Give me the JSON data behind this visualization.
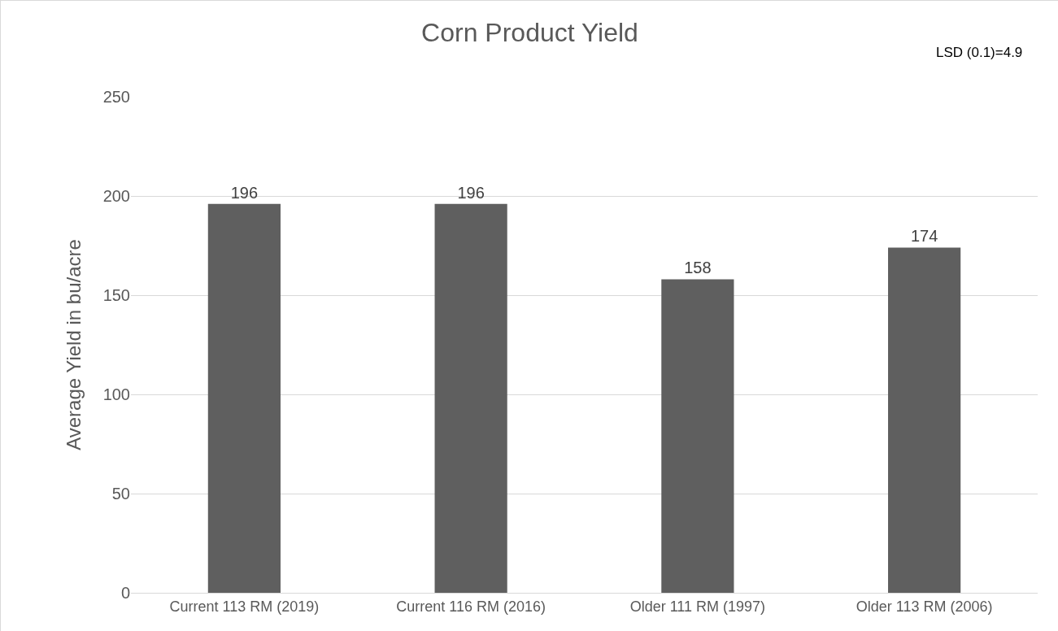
{
  "chart_data": {
    "type": "bar",
    "title": "Corn Product Yield",
    "ylabel": "Average Yield in bu/acre",
    "categories": [
      "Current 113 RM (2019)",
      "Current 116 RM (2016)",
      "Older 111 RM (1997)",
      "Older 113 RM (2006)"
    ],
    "values": [
      196,
      196,
      158,
      174
    ],
    "color": "#5f5f5f",
    "ylim": [
      0,
      250
    ],
    "yticks": [
      0,
      50,
      100,
      150,
      200,
      250
    ],
    "grid": "y",
    "data_labels": true,
    "annotations": [
      "LSD (0.1)=4.9"
    ]
  }
}
